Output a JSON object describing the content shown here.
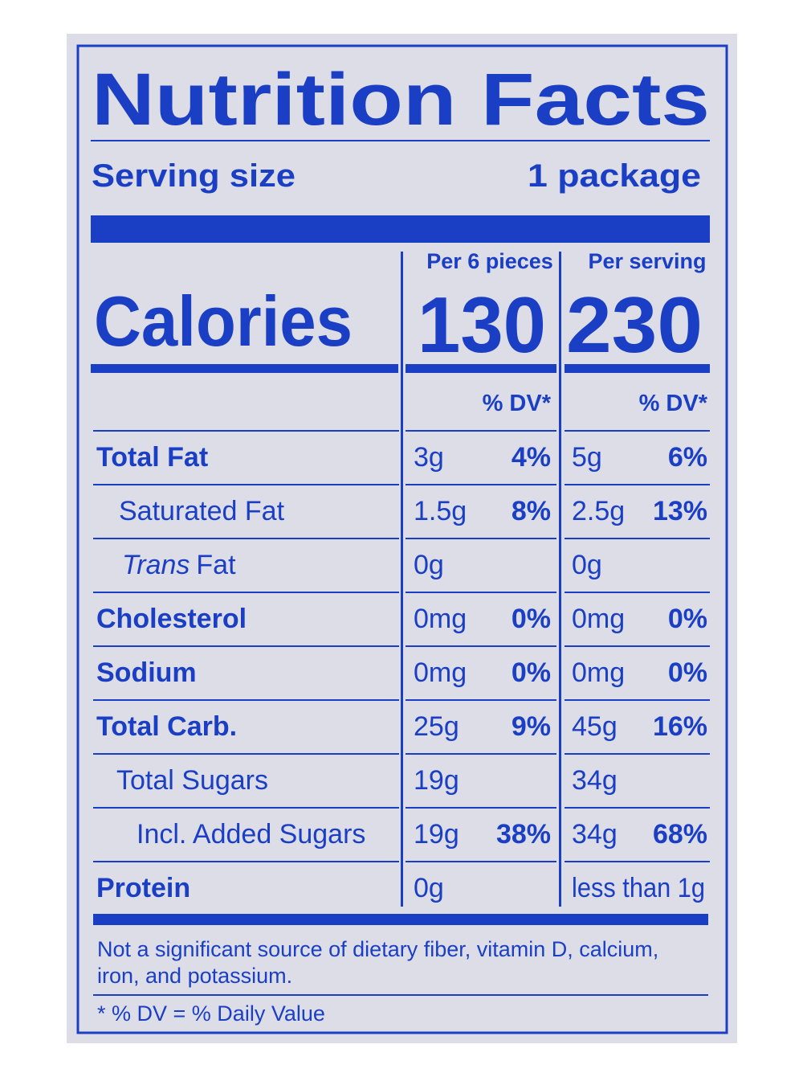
{
  "header": {
    "title": "Nutrition Facts",
    "serving_size_label": "Serving size",
    "serving_size": "1 package"
  },
  "calories_label": "Calories",
  "columns": [
    {
      "heading": "Per 6 pieces",
      "calories": 130,
      "dv_heading": "% DV*"
    },
    {
      "heading": "Per serving",
      "calories": 230,
      "dv_heading": "% DV*"
    }
  ],
  "rows": [
    {
      "label": "Total Fat",
      "values": [
        {
          "amount": "3g",
          "dv": "4%"
        },
        {
          "amount": "5g",
          "dv": "6%"
        }
      ]
    },
    {
      "label": "Saturated Fat",
      "values": [
        {
          "amount": "1.5g",
          "dv": "8%"
        },
        {
          "amount": "2.5g",
          "dv": "13%"
        }
      ]
    },
    {
      "label_italic": "Trans",
      "label": "Fat",
      "values": [
        {
          "amount": "0g"
        },
        {
          "amount": "0g"
        }
      ]
    },
    {
      "label": "Cholesterol",
      "values": [
        {
          "amount": "0mg",
          "dv": "0%"
        },
        {
          "amount": "0mg",
          "dv": "0%"
        }
      ]
    },
    {
      "label": "Sodium",
      "values": [
        {
          "amount": "0mg",
          "dv": "0%"
        },
        {
          "amount": "0mg",
          "dv": "0%"
        }
      ]
    },
    {
      "label": "Total Carb.",
      "values": [
        {
          "amount": "25g",
          "dv": "9%"
        },
        {
          "amount": "45g",
          "dv": "16%"
        }
      ]
    },
    {
      "label": "Total Sugars",
      "values": [
        {
          "amount": "19g"
        },
        {
          "amount": "34g"
        }
      ]
    },
    {
      "label": "Incl. Added Sugars",
      "values": [
        {
          "amount": "19g",
          "dv": "38%"
        },
        {
          "amount": "34g",
          "dv": "68%"
        }
      ]
    },
    {
      "label": "Protein",
      "values": [
        {
          "amount": "0g"
        },
        {
          "amount": "less than 1g"
        }
      ]
    }
  ],
  "footnote": {
    "text_lines": [
      "Not a significant source of dietary fiber, vitamin D, calcium,",
      "iron, and potassium."
    ],
    "dv_note": "* % DV = % Daily Value"
  }
}
